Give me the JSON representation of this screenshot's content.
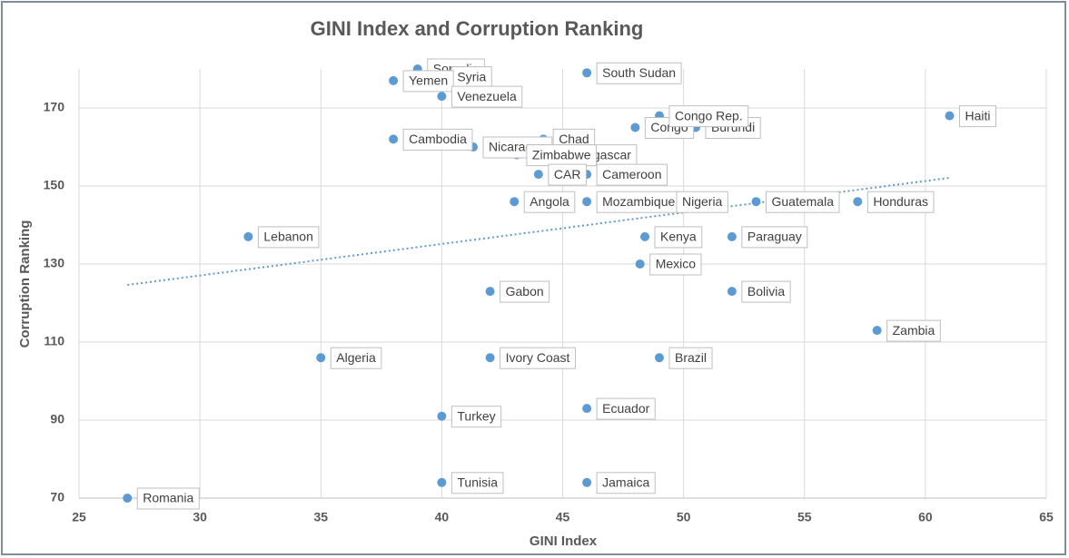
{
  "chart_data": {
    "type": "scatter",
    "title": "GINI Index and Corruption Ranking",
    "x_label": "GINI Index",
    "y_label": "Corruption Ranking",
    "labels": [
      "Somalia",
      "Syria",
      "Yemen",
      "Venezuela",
      "South Sudan",
      "Haiti",
      "Congo",
      "Burundi",
      "Congo Rep.",
      "Cambodia",
      "Chad",
      "Nicaragua",
      "Madagascar",
      "Zimbabwe",
      "Cameroon",
      "CAR",
      "Angola",
      "Mozambique",
      "Nigeria",
      "Honduras",
      "Guatemala",
      "Lebanon",
      "Kenya",
      "Paraguay",
      "Mexico",
      "Gabon",
      "Bolivia",
      "Zambia",
      "Algeria",
      "Ivory Coast",
      "Brazil",
      "Ecuador",
      "Turkey",
      "Tunisia",
      "Jamaica",
      "Romania"
    ],
    "x": [
      39,
      40,
      38,
      40,
      46,
      61,
      48,
      50.5,
      49,
      38,
      44.2,
      41.3,
      44.3,
      43.1,
      46,
      44,
      43,
      46,
      49.3,
      57.2,
      53,
      32,
      48.4,
      52,
      48.2,
      42,
      52,
      58,
      35,
      42,
      49,
      46,
      40,
      40,
      46,
      27
    ],
    "values": [
      180,
      178,
      177,
      173,
      179,
      168,
      165,
      165,
      168,
      162,
      162,
      160,
      158,
      158,
      153,
      153,
      146,
      146,
      146,
      146,
      146,
      137,
      137,
      137,
      130,
      123,
      123,
      113,
      106,
      106,
      106,
      93,
      91,
      74,
      74,
      70
    ],
    "color": "#5b9bd5",
    "trendline": true,
    "trendline_color": "#5b9bd5",
    "xlim": [
      25,
      65
    ],
    "xticks": [
      25,
      30,
      35,
      40,
      45,
      50,
      55,
      60,
      65
    ],
    "ylim": [
      70,
      180
    ],
    "yticks": [
      70,
      90,
      110,
      130,
      150,
      170
    ],
    "grid": true
  }
}
